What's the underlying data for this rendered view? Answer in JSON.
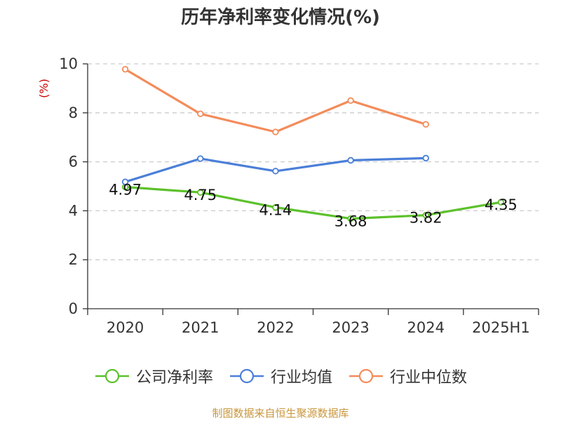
{
  "chart_data": {
    "type": "line",
    "title": "历年净利率变化情况(%)",
    "ylabel": "(%)",
    "categories": [
      "2020",
      "2021",
      "2022",
      "2023",
      "2024",
      "2025H1"
    ],
    "y_ticks": [
      "0",
      "2",
      "4",
      "6",
      "8",
      "10"
    ],
    "ylim": [
      0,
      10
    ],
    "grid": "horizontal-dashed",
    "legend_position": "bottom",
    "series": [
      {
        "name": "公司净利率",
        "color": "#5cc12b",
        "values": [
          4.97,
          4.75,
          4.14,
          3.68,
          3.82,
          4.35
        ],
        "labels": [
          "4.97",
          "4.75",
          "4.14",
          "3.68",
          "3.82",
          "4.35"
        ]
      },
      {
        "name": "行业均值",
        "color": "#4b7fd8",
        "values": [
          5.18,
          6.13,
          5.62,
          6.06,
          6.15,
          null
        ]
      },
      {
        "name": "行业中位数",
        "color": "#f38c5b",
        "values": [
          9.78,
          7.96,
          7.22,
          8.5,
          7.53,
          null
        ]
      }
    ]
  },
  "ylabel_color": "#cc0000",
  "source_text": "制图数据来自恒生聚源数据库",
  "source_color": "#c8963c"
}
